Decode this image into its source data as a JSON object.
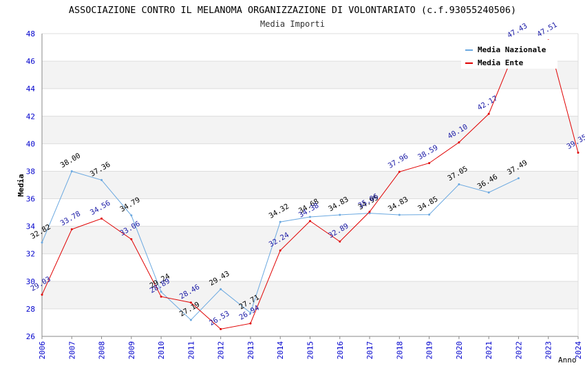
{
  "chart_data": {
    "type": "line",
    "title": "ASSOCIAZIONE CONTRO IL MELANOMA ORGANIZZAZIONE DI VOLONTARIATO (c.f.93055240506)",
    "subtitle": "Media Importi",
    "xlabel": "Anno",
    "ylabel": "Media",
    "ylim": [
      26,
      48
    ],
    "yticks": [
      26,
      28,
      30,
      32,
      34,
      36,
      38,
      40,
      42,
      44,
      46,
      48
    ],
    "x": [
      "2006",
      "2007",
      "2008",
      "2009",
      "2010",
      "2011",
      "2012",
      "2013",
      "2014",
      "2015",
      "2016",
      "2017",
      "2018",
      "2019",
      "2020",
      "2021",
      "2022",
      "2023",
      "2024"
    ],
    "grid": "horizontal-bands",
    "legend_position": "top-right",
    "series": [
      {
        "name": "Media Nazionale",
        "color": "#6aa8e0",
        "label_color": "#000000",
        "values": [
          32.82,
          38.0,
          37.36,
          34.79,
          29.24,
          27.19,
          29.43,
          27.71,
          34.32,
          34.68,
          34.83,
          34.95,
          34.83,
          34.85,
          37.05,
          36.46,
          37.49,
          null,
          null
        ],
        "labels": [
          "32.82",
          "38.00",
          "37.36",
          "34.79",
          "29.24",
          "27.19",
          "29.43",
          "27.71",
          "34.32",
          "34.68",
          "34.83",
          "34.95",
          "34.83",
          "34.85",
          "37.05",
          "36.46",
          "37.49",
          "",
          ""
        ]
      },
      {
        "name": "Media Ente",
        "color": "#e00000",
        "label_color": "#1a1aa6",
        "values": [
          29.03,
          33.78,
          34.56,
          33.06,
          28.89,
          28.46,
          26.53,
          26.94,
          32.24,
          34.38,
          32.89,
          35.06,
          37.96,
          38.59,
          40.1,
          42.17,
          47.43,
          47.51,
          39.35
        ],
        "labels": [
          "29.03",
          "33.78",
          "34.56",
          "33.06",
          "28.89",
          "28.46",
          "26.53",
          "26.94",
          "32.24",
          "34.38",
          "32.89",
          "35.06",
          "37.96",
          "38.59",
          "40.10",
          "42.17",
          "47.43",
          "47.51",
          "39.35"
        ]
      }
    ]
  },
  "colors": {
    "axis_label": "#0000cc",
    "band": "#f3f3f3",
    "grid": "#dddddd",
    "axis": "#888888"
  }
}
